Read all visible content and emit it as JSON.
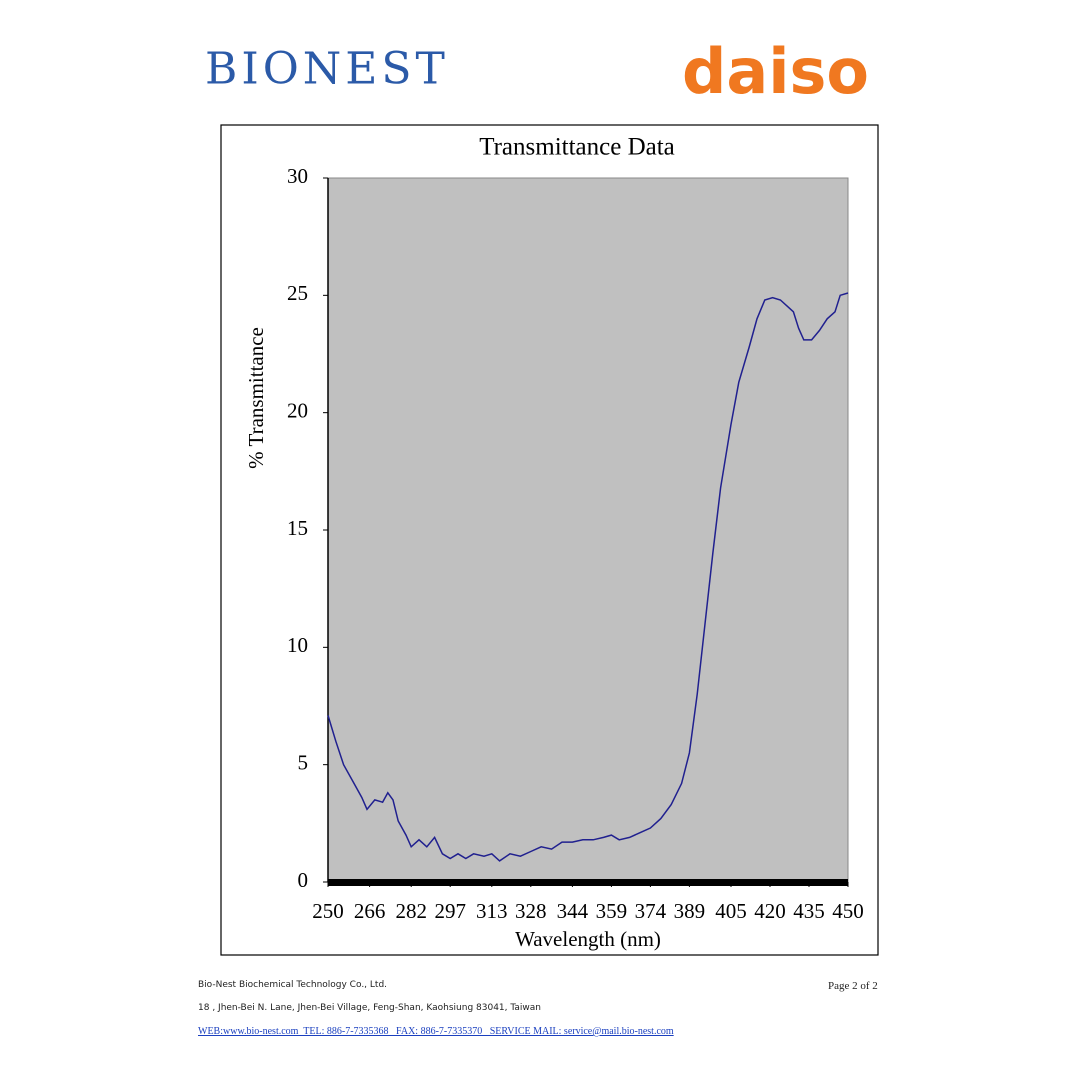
{
  "header": {
    "left_logo": "BIONEST",
    "right_logo": "daiso"
  },
  "chart_data": {
    "type": "line",
    "title": "Transmittance Data",
    "x_label": "Wavelength (nm)",
    "y_label": "% Transmittance",
    "color": "#20208f",
    "background": "#c0c0c0",
    "x": [
      250,
      253,
      256,
      260,
      263,
      265,
      268,
      271,
      273,
      275,
      277,
      280,
      282,
      285,
      288,
      291,
      294,
      297,
      300,
      303,
      306,
      310,
      313,
      316,
      320,
      324,
      328,
      332,
      336,
      340,
      344,
      348,
      352,
      356,
      359,
      362,
      366,
      370,
      374,
      378,
      382,
      386,
      389,
      392,
      395,
      398,
      401,
      405,
      408,
      412,
      415,
      418,
      421,
      424,
      427,
      429,
      431,
      433,
      436,
      439,
      442,
      445,
      447,
      450
    ],
    "values": [
      7.1,
      6.0,
      5.0,
      4.2,
      3.6,
      3.1,
      3.5,
      3.4,
      3.8,
      3.5,
      2.6,
      2.0,
      1.5,
      1.8,
      1.5,
      1.9,
      1.2,
      1.0,
      1.2,
      1.0,
      1.2,
      1.1,
      1.2,
      0.9,
      1.2,
      1.1,
      1.3,
      1.5,
      1.4,
      1.7,
      1.7,
      1.8,
      1.8,
      1.9,
      2.0,
      1.8,
      1.9,
      2.1,
      2.3,
      2.7,
      3.3,
      4.2,
      5.5,
      8.0,
      11.0,
      14.0,
      16.8,
      19.5,
      21.3,
      22.8,
      24.0,
      24.8,
      24.9,
      24.8,
      24.5,
      24.3,
      23.6,
      23.1,
      23.1,
      23.5,
      24.0,
      24.3,
      25.0,
      25.1
    ],
    "xlim": [
      250,
      450
    ],
    "ylim": [
      0,
      30
    ],
    "xticks": [
      250,
      266,
      282,
      297,
      313,
      328,
      344,
      359,
      374,
      389,
      405,
      420,
      435,
      450
    ],
    "yticks": [
      0,
      5,
      10,
      15,
      20,
      25,
      30
    ]
  },
  "footer": {
    "company": "Bio-Nest Biochemical Technology Co., Ltd.",
    "address": "18 , Jhen-Bei N. Lane, Jhen-Bei Village, Feng-Shan, Kaohsiung 83041, Taiwan",
    "contact": "WEB:www.bio-nest.com  TEL: 886-7-7335368   FAX: 886-7-7335370   SERVICE MAIL: service@mail.bio-nest.com",
    "page": "Page 2 of 2"
  }
}
